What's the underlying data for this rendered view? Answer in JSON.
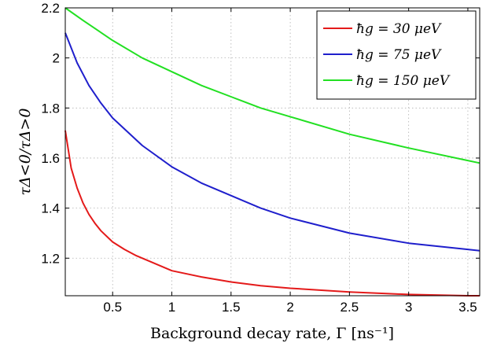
{
  "chart_data": {
    "type": "line",
    "xlabel": "Background decay rate, Γ [ns⁻¹]",
    "ylabel": "τΔ<0/τΔ>0",
    "xlim": [
      0.1,
      3.6
    ],
    "ylim": [
      1.05,
      2.2
    ],
    "xticks": [
      "0.5",
      "1",
      "1.5",
      "2",
      "2.5",
      "3",
      "3.5"
    ],
    "yticks": [
      "1.2",
      "1.4",
      "1.6",
      "1.8",
      "2",
      "2.2"
    ],
    "grid": true,
    "legend_position": "top-right",
    "series": [
      {
        "name": "ħg = 30 μeV",
        "color": "#e41a1a",
        "x": [
          0.1,
          0.15,
          0.2,
          0.25,
          0.3,
          0.35,
          0.4,
          0.5,
          0.6,
          0.7,
          0.8,
          1.0,
          1.25,
          1.5,
          1.75,
          2.0,
          2.5,
          3.0,
          3.5,
          3.6
        ],
        "y": [
          1.71,
          1.56,
          1.48,
          1.42,
          1.375,
          1.34,
          1.31,
          1.265,
          1.235,
          1.21,
          1.19,
          1.15,
          1.125,
          1.105,
          1.09,
          1.08,
          1.065,
          1.055,
          1.05,
          1.05
        ]
      },
      {
        "name": "ħg = 75 μeV",
        "color": "#1f1fcc",
        "x": [
          0.1,
          0.2,
          0.3,
          0.4,
          0.5,
          0.75,
          1.0,
          1.25,
          1.5,
          1.75,
          2.0,
          2.5,
          3.0,
          3.5,
          3.6
        ],
        "y": [
          2.1,
          1.98,
          1.89,
          1.82,
          1.76,
          1.65,
          1.565,
          1.5,
          1.45,
          1.4,
          1.36,
          1.3,
          1.26,
          1.235,
          1.23
        ]
      },
      {
        "name": "ħg = 150 μeV",
        "color": "#22e022",
        "x": [
          0.1,
          0.25,
          0.5,
          0.75,
          1.0,
          1.25,
          1.5,
          1.75,
          2.0,
          2.5,
          3.0,
          3.5,
          3.6
        ],
        "y": [
          2.2,
          2.15,
          2.07,
          2.0,
          1.945,
          1.89,
          1.845,
          1.8,
          1.765,
          1.695,
          1.64,
          1.59,
          1.58
        ]
      }
    ]
  }
}
